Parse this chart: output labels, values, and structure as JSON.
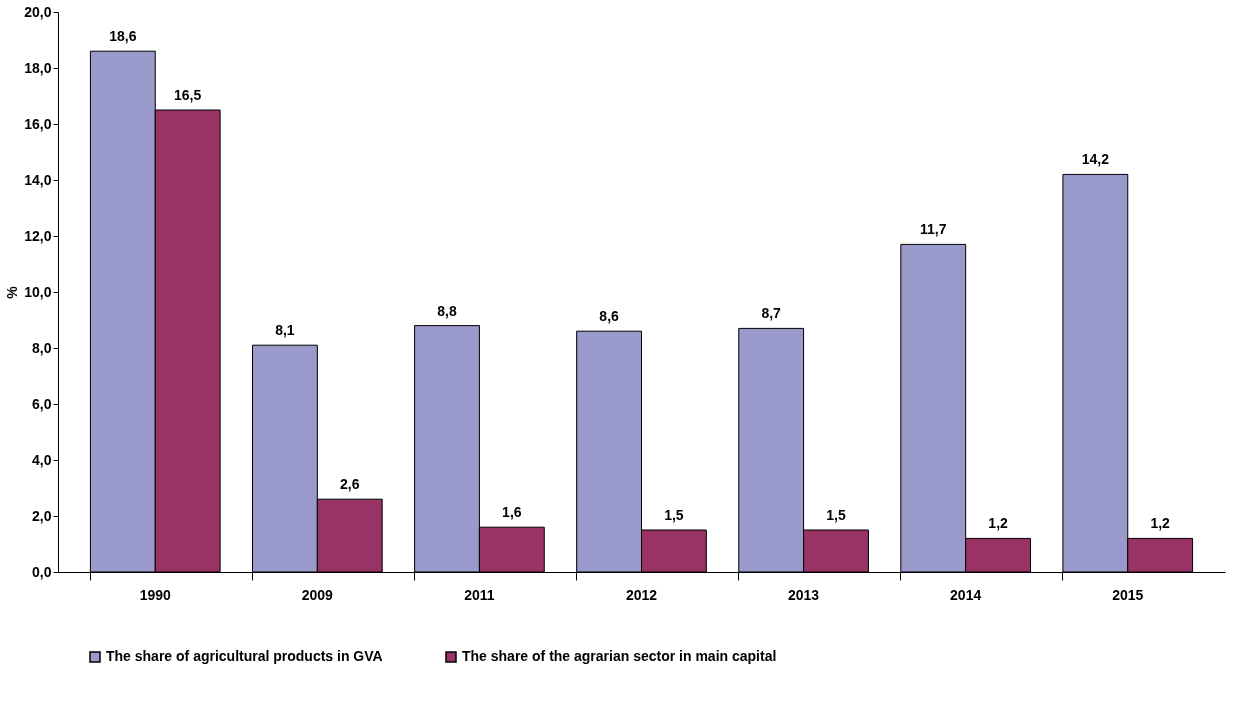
{
  "chart_data": {
    "type": "bar",
    "ylabel": "%",
    "categories": [
      "1990",
      "2009",
      "2011",
      "2012",
      "2013",
      "2014",
      "2015"
    ],
    "series": [
      {
        "name": "The share of agricultural products in GVA",
        "color": "#9999cc",
        "values": [
          18.6,
          8.1,
          8.8,
          8.6,
          8.7,
          11.7,
          14.2
        ],
        "value_labels": [
          "18,6",
          "8,1",
          "8,8",
          "8,6",
          "8,7",
          "11,7",
          "14,2"
        ]
      },
      {
        "name": "The share of the agrarian sector in main capital",
        "color": "#993366",
        "values": [
          16.5,
          2.6,
          1.6,
          1.5,
          1.5,
          1.2,
          1.2
        ],
        "value_labels": [
          "16,5",
          "2,6",
          "1,6",
          "1,5",
          "1,5",
          "1,2",
          "1,2"
        ]
      }
    ],
    "ylim": [
      0,
      20
    ],
    "yticks": [
      {
        "value": 0,
        "label": "0,0"
      },
      {
        "value": 2,
        "label": "2,0"
      },
      {
        "value": 4,
        "label": "4,0"
      },
      {
        "value": 6,
        "label": "6,0"
      },
      {
        "value": 8,
        "label": "8,0"
      },
      {
        "value": 10,
        "label": "10,0"
      },
      {
        "value": 12,
        "label": "12,0"
      },
      {
        "value": 14,
        "label": "14,0"
      },
      {
        "value": 16,
        "label": "16,0"
      },
      {
        "value": 18,
        "label": "18,0"
      },
      {
        "value": 20,
        "label": "20,0"
      }
    ],
    "grid": false,
    "legend": "bottom"
  }
}
